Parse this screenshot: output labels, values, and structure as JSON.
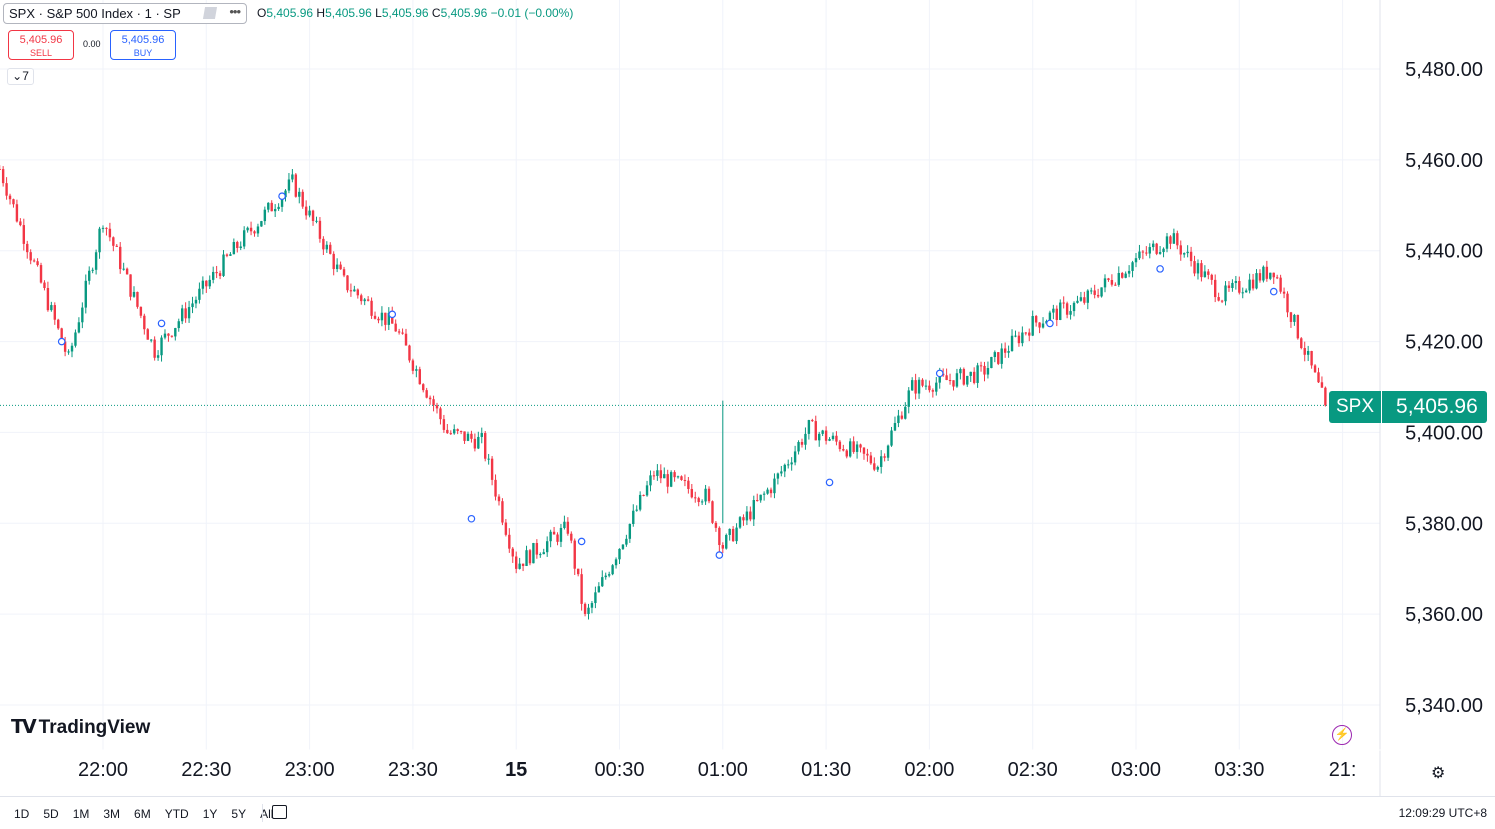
{
  "symbol": {
    "label": "SPX · S&P 500 Index · 1 · SP"
  },
  "ohlc": {
    "o_label": "O",
    "o": "5,405.96",
    "h_label": "H",
    "h": "5,405.96",
    "l_label": "L",
    "l": "5,405.96",
    "c_label": "C",
    "c": "5,405.96",
    "change": "−0.01 (−0.00%)"
  },
  "trade": {
    "sell_price": "5,405.96",
    "sell_label": "SELL",
    "spread": "0.00",
    "buy_price": "5,405.96",
    "buy_label": "BUY"
  },
  "indicators_count": "7",
  "logo_text": "TradingView",
  "current_price": {
    "symbol": "SPX",
    "value": "5,405.96"
  },
  "ranges": [
    "1D",
    "5D",
    "1M",
    "3M",
    "6M",
    "YTD",
    "1Y",
    "5Y",
    "All"
  ],
  "clock": "12:09:29 UTC+8",
  "colors": {
    "up": "#089981",
    "down": "#f23645",
    "grid": "#f0f3fa",
    "text": "#131722"
  },
  "chart_data": {
    "type": "candlestick",
    "interval": "1 minute",
    "ylim": [
      5330,
      5490
    ],
    "y_ticks": [
      5340,
      5360,
      5380,
      5400,
      5420,
      5440,
      5460,
      5480
    ],
    "y_tick_labels": [
      "5,340.00",
      "5,360.00",
      "5,380.00",
      "5,400.00",
      "5,420.00",
      "5,440.00",
      "5,460.00",
      "5,480.00"
    ],
    "x_ticks": [
      "22:00",
      "22:30",
      "23:00",
      "23:30",
      "15",
      "00:30",
      "01:00",
      "01:30",
      "02:00",
      "02:30",
      "03:00",
      "03:30",
      "21:"
    ],
    "last_price": 5405.96,
    "closes_approx": [
      {
        "time": "21:30",
        "close": 5458
      },
      {
        "time": "21:50",
        "close": 5416
      },
      {
        "time": "22:00",
        "close": 5447
      },
      {
        "time": "22:15",
        "close": 5418
      },
      {
        "time": "22:40",
        "close": 5442
      },
      {
        "time": "22:55",
        "close": 5455
      },
      {
        "time": "23:10",
        "close": 5433
      },
      {
        "time": "23:25",
        "close": 5423
      },
      {
        "time": "23:40",
        "close": 5400
      },
      {
        "time": "23:50",
        "close": 5398
      },
      {
        "time": "00:00",
        "close": 5371
      },
      {
        "time": "00:15",
        "close": 5379
      },
      {
        "time": "00:20",
        "close": 5359
      },
      {
        "time": "00:40",
        "close": 5391
      },
      {
        "time": "00:55",
        "close": 5386
      },
      {
        "time": "01:00",
        "close": 5375
      },
      {
        "time": "01:15",
        "close": 5389
      },
      {
        "time": "01:25",
        "close": 5401
      },
      {
        "time": "01:45",
        "close": 5393
      },
      {
        "time": "01:55",
        "close": 5410
      },
      {
        "time": "02:15",
        "close": 5413
      },
      {
        "time": "02:30",
        "close": 5424
      },
      {
        "time": "02:45",
        "close": 5429
      },
      {
        "time": "03:00",
        "close": 5438
      },
      {
        "time": "03:10",
        "close": 5443
      },
      {
        "time": "03:25",
        "close": 5430
      },
      {
        "time": "03:40",
        "close": 5436
      },
      {
        "time": "03:55",
        "close": 5405.96
      }
    ],
    "markers": [
      {
        "time": "21:48",
        "price": 5420
      },
      {
        "time": "22:17",
        "price": 5424
      },
      {
        "time": "22:52",
        "price": 5452
      },
      {
        "time": "23:24",
        "price": 5426
      },
      {
        "time": "23:47",
        "price": 5381
      },
      {
        "time": "00:19",
        "price": 5376
      },
      {
        "time": "00:59",
        "price": 5373
      },
      {
        "time": "01:31",
        "price": 5389
      },
      {
        "time": "02:03",
        "price": 5413
      },
      {
        "time": "02:35",
        "price": 5424
      },
      {
        "time": "03:07",
        "price": 5436
      },
      {
        "time": "03:40",
        "price": 5431
      }
    ]
  }
}
